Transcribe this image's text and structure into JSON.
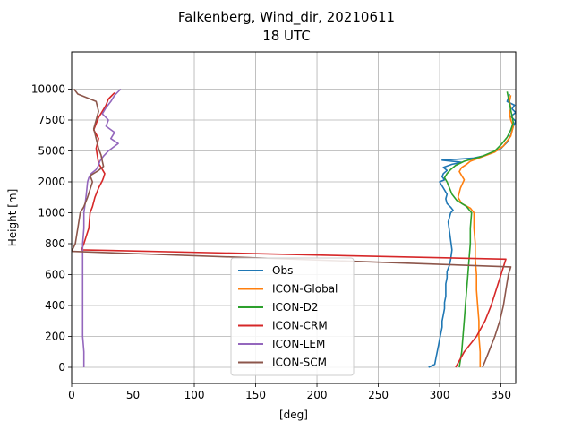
{
  "chart_data": {
    "type": "line",
    "title": "Falkenberg, Wind_dir, 20210611",
    "subtitle": "18 UTC",
    "xlabel": "[deg]",
    "ylabel": "Height [m]",
    "xlim": [
      0,
      362
    ],
    "x_ticks": [
      0,
      50,
      100,
      150,
      200,
      250,
      300,
      350
    ],
    "y_ticks": [
      {
        "label": "0",
        "value": 0
      },
      {
        "label": "200",
        "value": 200
      },
      {
        "label": "400",
        "value": 400
      },
      {
        "label": "600",
        "value": 600
      },
      {
        "label": "800",
        "value": 800
      },
      {
        "label": "1000",
        "value": 1000
      },
      {
        "label": "2000",
        "value": 2000
      },
      {
        "label": "5000",
        "value": 5000
      },
      {
        "label": "7500",
        "value": 7500
      },
      {
        "label": "10000",
        "value": 10000
      }
    ],
    "grid": true,
    "legend_position": "lower-center",
    "series": [
      {
        "name": "Obs",
        "color": "#1f77b4",
        "points": [
          [
            291,
            0
          ],
          [
            296,
            20
          ],
          [
            297,
            60
          ],
          [
            298,
            100
          ],
          [
            299,
            140
          ],
          [
            300,
            180
          ],
          [
            301,
            220
          ],
          [
            302,
            260
          ],
          [
            302,
            300
          ],
          [
            303,
            340
          ],
          [
            304,
            380
          ],
          [
            304,
            420
          ],
          [
            305,
            460
          ],
          [
            305,
            500
          ],
          [
            305,
            540
          ],
          [
            306,
            580
          ],
          [
            306,
            620
          ],
          [
            308,
            660
          ],
          [
            309,
            700
          ],
          [
            310,
            760
          ],
          [
            309,
            820
          ],
          [
            308,
            880
          ],
          [
            307,
            940
          ],
          [
            309,
            1000
          ],
          [
            311,
            1080
          ],
          [
            309,
            1180
          ],
          [
            306,
            1300
          ],
          [
            305,
            1450
          ],
          [
            306,
            1600
          ],
          [
            303,
            1800
          ],
          [
            300,
            2000
          ],
          [
            304,
            2200
          ],
          [
            302,
            2500
          ],
          [
            303,
            2800
          ],
          [
            306,
            3100
          ],
          [
            303,
            3400
          ],
          [
            310,
            3700
          ],
          [
            318,
            3900
          ],
          [
            302,
            4100
          ],
          [
            327,
            4300
          ],
          [
            335,
            4500
          ],
          [
            342,
            4800
          ],
          [
            350,
            5200
          ],
          [
            355,
            5700
          ],
          [
            358,
            6300
          ],
          [
            360,
            7000
          ],
          [
            362,
            7400
          ],
          [
            358,
            7800
          ],
          [
            362,
            8100
          ],
          [
            359,
            8400
          ],
          [
            361,
            8700
          ],
          [
            355,
            9000
          ],
          [
            356,
            9300
          ],
          [
            357,
            9600
          ]
        ]
      },
      {
        "name": "ICON-Global",
        "color": "#ff7f0e",
        "points": [
          [
            333,
            0
          ],
          [
            333,
            100
          ],
          [
            332,
            200
          ],
          [
            332,
            300
          ],
          [
            331,
            400
          ],
          [
            330,
            500
          ],
          [
            330,
            600
          ],
          [
            329,
            700
          ],
          [
            329,
            800
          ],
          [
            328,
            900
          ],
          [
            328,
            1000
          ],
          [
            325,
            1150
          ],
          [
            318,
            1300
          ],
          [
            315,
            1500
          ],
          [
            317,
            1800
          ],
          [
            320,
            2200
          ],
          [
            318,
            2600
          ],
          [
            316,
            3000
          ],
          [
            318,
            3400
          ],
          [
            322,
            3700
          ],
          [
            325,
            4000
          ],
          [
            334,
            4400
          ],
          [
            345,
            4900
          ],
          [
            352,
            5400
          ],
          [
            358,
            6200
          ],
          [
            360,
            7000
          ],
          [
            358,
            7500
          ],
          [
            357,
            8000
          ],
          [
            358,
            8500
          ],
          [
            357,
            9000
          ],
          [
            358,
            9500
          ]
        ]
      },
      {
        "name": "ICON-D2",
        "color": "#2ca02c",
        "points": [
          [
            316,
            0
          ],
          [
            318,
            100
          ],
          [
            319,
            200
          ],
          [
            320,
            300
          ],
          [
            321,
            400
          ],
          [
            322,
            500
          ],
          [
            323,
            600
          ],
          [
            324,
            700
          ],
          [
            325,
            800
          ],
          [
            325,
            900
          ],
          [
            326,
            1000
          ],
          [
            322,
            1200
          ],
          [
            314,
            1400
          ],
          [
            310,
            1600
          ],
          [
            306,
            2000
          ],
          [
            304,
            2400
          ],
          [
            306,
            2800
          ],
          [
            309,
            3200
          ],
          [
            313,
            3600
          ],
          [
            320,
            4000
          ],
          [
            335,
            4500
          ],
          [
            345,
            5000
          ],
          [
            350,
            5500
          ],
          [
            355,
            6100
          ],
          [
            358,
            6700
          ],
          [
            360,
            7300
          ],
          [
            359,
            7800
          ],
          [
            358,
            8300
          ],
          [
            357,
            8800
          ],
          [
            356,
            9300
          ],
          [
            355,
            9800
          ]
        ]
      },
      {
        "name": "ICON-CRM",
        "color": "#d62728",
        "points": [
          [
            313,
            0
          ],
          [
            320,
            100
          ],
          [
            330,
            200
          ],
          [
            337,
            300
          ],
          [
            342,
            400
          ],
          [
            346,
            500
          ],
          [
            350,
            600
          ],
          [
            354,
            700
          ],
          [
            8,
            760
          ],
          [
            10,
            800
          ],
          [
            12,
            850
          ],
          [
            14,
            900
          ],
          [
            15,
            1000
          ],
          [
            17,
            1200
          ],
          [
            19,
            1500
          ],
          [
            22,
            1800
          ],
          [
            25,
            2100
          ],
          [
            26,
            2400
          ],
          [
            27,
            2800
          ],
          [
            25,
            3200
          ],
          [
            22,
            3800
          ],
          [
            21,
            4500
          ],
          [
            20,
            5200
          ],
          [
            22,
            6000
          ],
          [
            18,
            6700
          ],
          [
            20,
            7200
          ],
          [
            22,
            7700
          ],
          [
            25,
            8200
          ],
          [
            28,
            8700
          ],
          [
            30,
            9200
          ],
          [
            35,
            9700
          ]
        ]
      },
      {
        "name": "ICON-LEM",
        "color": "#9467bd",
        "points": [
          [
            10,
            0
          ],
          [
            10,
            100
          ],
          [
            9,
            200
          ],
          [
            9,
            300
          ],
          [
            9,
            400
          ],
          [
            9,
            500
          ],
          [
            9,
            600
          ],
          [
            9,
            700
          ],
          [
            9,
            800
          ],
          [
            10,
            900
          ],
          [
            10,
            1000
          ],
          [
            11,
            1300
          ],
          [
            12,
            1600
          ],
          [
            13,
            2000
          ],
          [
            14,
            2400
          ],
          [
            16,
            2800
          ],
          [
            20,
            3200
          ],
          [
            22,
            3600
          ],
          [
            23,
            4000
          ],
          [
            26,
            4500
          ],
          [
            30,
            5000
          ],
          [
            38,
            5600
          ],
          [
            32,
            6000
          ],
          [
            35,
            6500
          ],
          [
            28,
            7000
          ],
          [
            30,
            7500
          ],
          [
            25,
            8000
          ],
          [
            28,
            8500
          ],
          [
            32,
            9000
          ],
          [
            35,
            9500
          ],
          [
            40,
            10000
          ]
        ]
      },
      {
        "name": "ICON-SCM",
        "color": "#8c564b",
        "points": [
          [
            335,
            0
          ],
          [
            340,
            100
          ],
          [
            345,
            200
          ],
          [
            349,
            300
          ],
          [
            352,
            400
          ],
          [
            354,
            500
          ],
          [
            356,
            600
          ],
          [
            358,
            650
          ],
          [
            0,
            750
          ],
          [
            3,
            800
          ],
          [
            5,
            900
          ],
          [
            7,
            1000
          ],
          [
            10,
            1200
          ],
          [
            13,
            1500
          ],
          [
            17,
            2000
          ],
          [
            15,
            2600
          ],
          [
            22,
            3100
          ],
          [
            26,
            3500
          ],
          [
            25,
            4000
          ],
          [
            24,
            4600
          ],
          [
            22,
            5200
          ],
          [
            20,
            6000
          ],
          [
            18,
            6800
          ],
          [
            20,
            7500
          ],
          [
            22,
            8200
          ],
          [
            20,
            9000
          ],
          [
            5,
            9600
          ],
          [
            2,
            10000
          ]
        ]
      }
    ]
  }
}
